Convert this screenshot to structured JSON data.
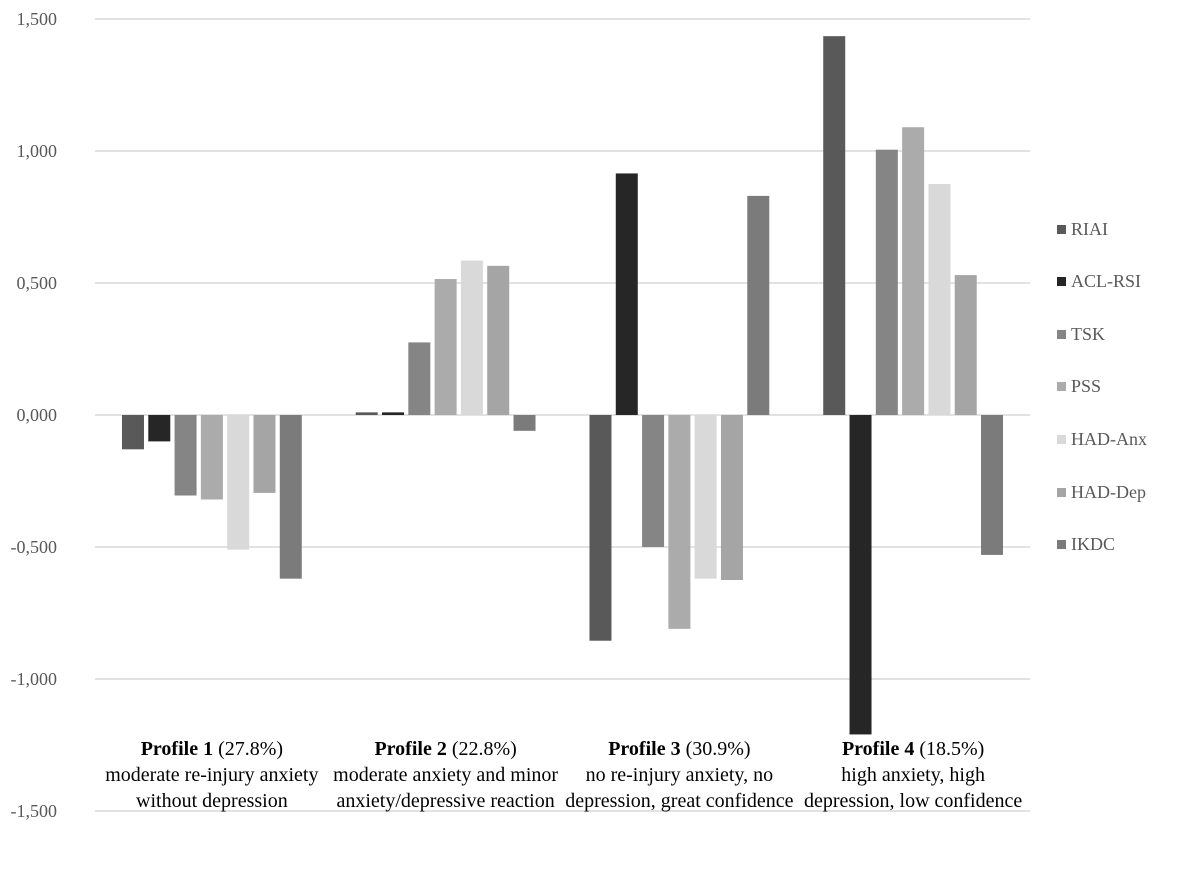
{
  "chart_data": {
    "type": "bar",
    "ylim": [
      -1.5,
      1.5
    ],
    "yticks": [
      {
        "value": 1.5,
        "label": "1,500"
      },
      {
        "value": 1.0,
        "label": "1,000"
      },
      {
        "value": 0.5,
        "label": "0,500"
      },
      {
        "value": 0.0,
        "label": "0,000"
      },
      {
        "value": -0.5,
        "label": "-0,500"
      },
      {
        "value": -1.0,
        "label": "-1,000"
      },
      {
        "value": -1.5,
        "label": "-1,500"
      }
    ],
    "grid": true,
    "legend_position": "right",
    "categories": [
      {
        "title": "Profile 1",
        "pct": "(27.8%)",
        "desc": "moderate re-injury anxiety without depression"
      },
      {
        "title": "Profile 2",
        "pct": "(22.8%)",
        "desc": "moderate anxiety and minor anxiety/depressive reaction"
      },
      {
        "title": "Profile 3",
        "pct": "(30.9%)",
        "desc": "no re-injury anxiety, no depression, great confidence"
      },
      {
        "title": "Profile 4",
        "pct": "(18.5%)",
        "desc": "high anxiety, high depression, low confidence"
      }
    ],
    "series": [
      {
        "name": "RIAI",
        "color": "#595959",
        "values": [
          -0.13,
          0.01,
          -0.855,
          1.435
        ]
      },
      {
        "name": "ACL-RSI",
        "color": "#262626",
        "values": [
          -0.1,
          0.01,
          0.915,
          -1.21
        ]
      },
      {
        "name": "TSK",
        "color": "#858585",
        "values": [
          -0.305,
          0.275,
          -0.5,
          1.005
        ]
      },
      {
        "name": "PSS",
        "color": "#ababab",
        "values": [
          -0.32,
          0.515,
          -0.81,
          1.09
        ]
      },
      {
        "name": "HAD-Anx",
        "color": "#d9d9d9",
        "values": [
          -0.51,
          0.585,
          -0.62,
          0.875
        ]
      },
      {
        "name": "HAD-Dep",
        "color": "#a5a5a5",
        "values": [
          -0.295,
          0.565,
          -0.625,
          0.53
        ]
      },
      {
        "name": "IKDC",
        "color": "#7b7b7b",
        "values": [
          -0.62,
          -0.06,
          0.83,
          -0.53
        ]
      }
    ]
  }
}
